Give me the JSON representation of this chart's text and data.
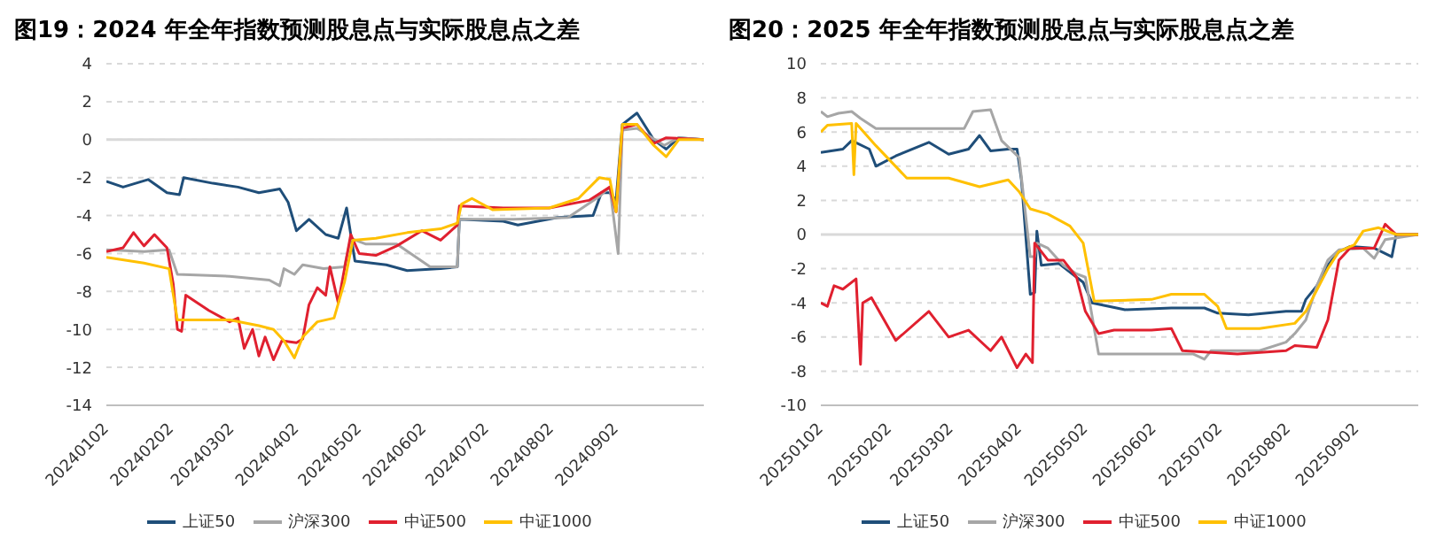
{
  "chart_data": [
    {
      "type": "line",
      "title": "图19：2024 年全年指数预测股息点与实际股息点之差",
      "xlim": [
        "2024-01-02",
        "2024-10-14"
      ],
      "xticks": [
        {
          "value": "2024-01-02",
          "label": "20240102"
        },
        {
          "value": "2024-02-02",
          "label": "20240202"
        },
        {
          "value": "2024-03-02",
          "label": "20240302"
        },
        {
          "value": "2024-04-02",
          "label": "20240402"
        },
        {
          "value": "2024-05-02",
          "label": "20240502"
        },
        {
          "value": "2024-06-02",
          "label": "20240602"
        },
        {
          "value": "2024-07-02",
          "label": "20240702"
        },
        {
          "value": "2024-08-02",
          "label": "20240802"
        },
        {
          "value": "2024-09-02",
          "label": "20240902"
        }
      ],
      "ylim": [
        -14,
        4
      ],
      "yticks": [
        -14,
        -12,
        -10,
        -8,
        -6,
        -4,
        -2,
        0,
        2,
        4
      ],
      "grid": "y",
      "legend": "bottom",
      "marker": "none",
      "line_style": "solid",
      "series": [
        {
          "name": "上证50",
          "color": "#1f4e79",
          "x": [
            "2024-01-02",
            "2024-01-10",
            "2024-01-22",
            "2024-01-31",
            "2024-02-06",
            "2024-02-08",
            "2024-02-22",
            "2024-03-05",
            "2024-03-15",
            "2024-03-25",
            "2024-03-29",
            "2024-04-02",
            "2024-04-08",
            "2024-04-16",
            "2024-04-22",
            "2024-04-26",
            "2024-04-30",
            "2024-05-15",
            "2024-05-25",
            "2024-06-10",
            "2024-06-18",
            "2024-06-19",
            "2024-07-10",
            "2024-07-17",
            "2024-08-05",
            "2024-08-22",
            "2024-08-26",
            "2024-08-30",
            "2024-09-02",
            "2024-09-05",
            "2024-09-12",
            "2024-09-20",
            "2024-09-26",
            "2024-10-02",
            "2024-10-14"
          ],
          "values": [
            -2.2,
            -2.5,
            -2.1,
            -2.8,
            -2.9,
            -2.0,
            -2.3,
            -2.5,
            -2.8,
            -2.6,
            -3.3,
            -4.8,
            -4.2,
            -5.0,
            -5.2,
            -3.6,
            -6.4,
            -6.6,
            -6.9,
            -6.8,
            -6.7,
            -4.2,
            -4.3,
            -4.5,
            -4.1,
            -4.0,
            -2.8,
            -2.8,
            -3.2,
            0.8,
            1.4,
            0.0,
            -0.5,
            0.1,
            0.0
          ]
        },
        {
          "name": "沪深300",
          "color": "#a6a6a6",
          "x": [
            "2024-01-02",
            "2024-01-20",
            "2024-02-01",
            "2024-02-05",
            "2024-03-01",
            "2024-03-20",
            "2024-03-25",
            "2024-03-27",
            "2024-04-01",
            "2024-04-05",
            "2024-04-15",
            "2024-04-25",
            "2024-04-28",
            "2024-05-05",
            "2024-05-20",
            "2024-06-05",
            "2024-06-18",
            "2024-06-19",
            "2024-07-15",
            "2024-08-10",
            "2024-08-25",
            "2024-08-30",
            "2024-09-03",
            "2024-09-05",
            "2024-09-12",
            "2024-09-25",
            "2024-10-02",
            "2024-10-14"
          ],
          "values": [
            -5.8,
            -5.9,
            -5.8,
            -7.1,
            -7.2,
            -7.4,
            -7.7,
            -6.8,
            -7.1,
            -6.6,
            -6.8,
            -6.7,
            -5.2,
            -5.5,
            -5.5,
            -6.7,
            -6.7,
            -4.2,
            -4.2,
            -4.1,
            -3.0,
            -2.5,
            -6.0,
            0.5,
            0.6,
            -0.3,
            0.1,
            0.0
          ]
        },
        {
          "name": "中证500",
          "color": "#e0202f",
          "x": [
            "2024-01-02",
            "2024-01-10",
            "2024-01-15",
            "2024-01-20",
            "2024-01-25",
            "2024-01-31",
            "2024-02-03",
            "2024-02-05",
            "2024-02-07",
            "2024-02-09",
            "2024-02-20",
            "2024-03-01",
            "2024-03-05",
            "2024-03-08",
            "2024-03-12",
            "2024-03-15",
            "2024-03-18",
            "2024-03-22",
            "2024-03-26",
            "2024-04-02",
            "2024-04-05",
            "2024-04-08",
            "2024-04-12",
            "2024-04-16",
            "2024-04-18",
            "2024-04-22",
            "2024-04-25",
            "2024-04-28",
            "2024-05-02",
            "2024-05-10",
            "2024-05-20",
            "2024-06-01",
            "2024-06-10",
            "2024-06-18",
            "2024-06-19",
            "2024-07-10",
            "2024-08-01",
            "2024-08-20",
            "2024-08-30",
            "2024-09-02",
            "2024-09-05",
            "2024-09-12",
            "2024-09-20",
            "2024-09-26",
            "2024-10-14"
          ],
          "values": [
            -5.9,
            -5.7,
            -4.9,
            -5.6,
            -5.0,
            -5.7,
            -7.6,
            -10.0,
            -10.1,
            -8.2,
            -9.0,
            -9.6,
            -9.4,
            -11.0,
            -10.0,
            -11.4,
            -10.4,
            -11.6,
            -10.6,
            -10.7,
            -10.5,
            -8.7,
            -7.8,
            -8.2,
            -6.7,
            -8.6,
            -6.8,
            -5.0,
            -6.0,
            -6.1,
            -5.6,
            -4.8,
            -5.3,
            -4.5,
            -3.5,
            -3.6,
            -3.6,
            -3.2,
            -2.5,
            -3.8,
            0.6,
            0.8,
            -0.2,
            0.1,
            0.0
          ]
        },
        {
          "name": "中证1000",
          "color": "#ffc000",
          "x": [
            "2024-01-02",
            "2024-01-20",
            "2024-02-01",
            "2024-02-05",
            "2024-02-20",
            "2024-03-01",
            "2024-03-15",
            "2024-03-22",
            "2024-03-27",
            "2024-04-01",
            "2024-04-05",
            "2024-04-12",
            "2024-04-20",
            "2024-04-25",
            "2024-04-29",
            "2024-05-10",
            "2024-05-25",
            "2024-06-10",
            "2024-06-18",
            "2024-06-20",
            "2024-06-25",
            "2024-07-05",
            "2024-08-01",
            "2024-08-15",
            "2024-08-25",
            "2024-08-30",
            "2024-09-02",
            "2024-09-05",
            "2024-09-12",
            "2024-09-20",
            "2024-09-26",
            "2024-10-02",
            "2024-10-14"
          ],
          "values": [
            -6.2,
            -6.5,
            -6.8,
            -9.5,
            -9.5,
            -9.5,
            -9.8,
            -10.0,
            -10.6,
            -11.5,
            -10.4,
            -9.6,
            -9.4,
            -7.5,
            -5.3,
            -5.2,
            -4.9,
            -4.7,
            -4.4,
            -3.4,
            -3.1,
            -3.7,
            -3.6,
            -3.1,
            -2.0,
            -2.1,
            -3.8,
            0.8,
            0.8,
            -0.3,
            -0.9,
            0.0,
            0.0
          ]
        }
      ]
    },
    {
      "type": "line",
      "title": "图20：2025 年全年指数预测股息点与实际股息点之差",
      "xlim": [
        "2025-01-02",
        "2025-09-30"
      ],
      "xticks": [
        {
          "value": "2025-01-02",
          "label": "20250102"
        },
        {
          "value": "2025-02-02",
          "label": "20250202"
        },
        {
          "value": "2025-03-02",
          "label": "20250302"
        },
        {
          "value": "2025-04-02",
          "label": "20250402"
        },
        {
          "value": "2025-05-02",
          "label": "20250502"
        },
        {
          "value": "2025-06-02",
          "label": "20250602"
        },
        {
          "value": "2025-07-02",
          "label": "20250702"
        },
        {
          "value": "2025-08-02",
          "label": "20250802"
        },
        {
          "value": "2025-09-02",
          "label": "20250902"
        }
      ],
      "ylim": [
        -10,
        10
      ],
      "yticks": [
        -10,
        -8,
        -6,
        -4,
        -2,
        0,
        2,
        4,
        6,
        8,
        10
      ],
      "grid": "y",
      "legend": "bottom",
      "marker": "none",
      "line_style": "solid",
      "series": [
        {
          "name": "上证50",
          "color": "#1f4e79",
          "x": [
            "2025-01-02",
            "2025-01-12",
            "2025-01-16",
            "2025-01-24",
            "2025-01-27",
            "2025-02-05",
            "2025-02-20",
            "2025-03-01",
            "2025-03-10",
            "2025-03-15",
            "2025-03-20",
            "2025-03-28",
            "2025-04-01",
            "2025-04-03",
            "2025-04-07",
            "2025-04-09",
            "2025-04-10",
            "2025-04-12",
            "2025-04-20",
            "2025-04-28",
            "2025-05-01",
            "2025-05-05",
            "2025-05-20",
            "2025-06-10",
            "2025-06-25",
            "2025-07-01",
            "2025-07-15",
            "2025-08-01",
            "2025-08-08",
            "2025-08-10",
            "2025-08-15",
            "2025-08-20",
            "2025-08-25",
            "2025-08-30",
            "2025-09-10",
            "2025-09-18",
            "2025-09-20",
            "2025-09-30"
          ],
          "values": [
            4.8,
            5.0,
            5.5,
            5.0,
            4.0,
            4.6,
            5.4,
            4.7,
            5.0,
            5.8,
            4.9,
            5.0,
            5.0,
            3.2,
            -3.5,
            -3.4,
            0.2,
            -1.8,
            -1.7,
            -2.5,
            -2.8,
            -4.0,
            -4.4,
            -4.3,
            -4.3,
            -4.6,
            -4.7,
            -4.5,
            -4.5,
            -3.8,
            -3.0,
            -1.8,
            -1.0,
            -0.7,
            -0.8,
            -1.3,
            0.0,
            0.0
          ]
        },
        {
          "name": "沪深300",
          "color": "#a6a6a6",
          "x": [
            "2025-01-02",
            "2025-01-05",
            "2025-01-10",
            "2025-01-16",
            "2025-01-20",
            "2025-01-27",
            "2025-02-20",
            "2025-03-08",
            "2025-03-12",
            "2025-03-20",
            "2025-03-25",
            "2025-04-02",
            "2025-04-07",
            "2025-04-09",
            "2025-04-10",
            "2025-04-15",
            "2025-04-22",
            "2025-04-28",
            "2025-05-02",
            "2025-05-08",
            "2025-06-10",
            "2025-06-20",
            "2025-06-25",
            "2025-06-28",
            "2025-07-20",
            "2025-08-01",
            "2025-08-05",
            "2025-08-10",
            "2025-08-15",
            "2025-08-20",
            "2025-08-25",
            "2025-09-05",
            "2025-09-10",
            "2025-09-15",
            "2025-09-30"
          ],
          "values": [
            7.2,
            6.9,
            7.1,
            7.2,
            6.8,
            6.2,
            6.2,
            6.2,
            7.2,
            7.3,
            5.5,
            4.5,
            -1.3,
            -1.3,
            -0.5,
            -0.8,
            -1.8,
            -2.3,
            -2.5,
            -7.0,
            -7.0,
            -7.0,
            -7.3,
            -6.8,
            -6.8,
            -6.3,
            -5.8,
            -5.0,
            -3.0,
            -1.5,
            -0.9,
            -0.8,
            -1.4,
            -0.3,
            0.0
          ]
        },
        {
          "name": "中证500",
          "color": "#e0202f",
          "x": [
            "2025-01-02",
            "2025-01-05",
            "2025-01-08",
            "2025-01-12",
            "2025-01-18",
            "2025-01-20",
            "2025-01-21",
            "2025-01-25",
            "2025-02-05",
            "2025-02-20",
            "2025-03-01",
            "2025-03-10",
            "2025-03-20",
            "2025-03-25",
            "2025-04-01",
            "2025-04-05",
            "2025-04-08",
            "2025-04-09",
            "2025-04-15",
            "2025-04-22",
            "2025-04-28",
            "2025-05-02",
            "2025-05-08",
            "2025-05-15",
            "2025-06-01",
            "2025-06-10",
            "2025-06-15",
            "2025-07-10",
            "2025-08-01",
            "2025-08-05",
            "2025-08-15",
            "2025-08-20",
            "2025-08-25",
            "2025-08-30",
            "2025-09-10",
            "2025-09-15",
            "2025-09-20",
            "2025-09-30"
          ],
          "values": [
            -4.0,
            -4.2,
            -3.0,
            -3.2,
            -2.6,
            -7.6,
            -4.0,
            -3.7,
            -6.2,
            -4.5,
            -6.0,
            -5.6,
            -6.8,
            -6.0,
            -7.8,
            -7.0,
            -7.5,
            -0.5,
            -1.5,
            -1.5,
            -2.5,
            -4.5,
            -5.8,
            -5.6,
            -5.6,
            -5.5,
            -6.8,
            -7.0,
            -6.8,
            -6.5,
            -6.6,
            -5.0,
            -1.5,
            -0.8,
            -0.8,
            0.6,
            0.0,
            0.0
          ]
        },
        {
          "name": "中证1000",
          "color": "#ffc000",
          "x": [
            "2025-01-02",
            "2025-01-05",
            "2025-01-16",
            "2025-01-17",
            "2025-01-18",
            "2025-01-27",
            "2025-02-10",
            "2025-03-01",
            "2025-03-15",
            "2025-03-28",
            "2025-04-02",
            "2025-04-07",
            "2025-04-15",
            "2025-04-25",
            "2025-05-01",
            "2025-05-06",
            "2025-06-01",
            "2025-06-10",
            "2025-06-25",
            "2025-07-01",
            "2025-07-05",
            "2025-07-20",
            "2025-08-05",
            "2025-08-10",
            "2025-08-20",
            "2025-08-25",
            "2025-09-01",
            "2025-09-05",
            "2025-09-12",
            "2025-09-20",
            "2025-09-30"
          ],
          "values": [
            6.0,
            6.4,
            6.5,
            3.5,
            6.5,
            5.2,
            3.3,
            3.3,
            2.8,
            3.2,
            2.5,
            1.5,
            1.2,
            0.5,
            -0.5,
            -3.9,
            -3.8,
            -3.5,
            -3.5,
            -4.2,
            -5.5,
            -5.5,
            -5.2,
            -4.5,
            -2.0,
            -1.0,
            -0.6,
            0.2,
            0.4,
            0.0,
            0.0
          ]
        }
      ]
    }
  ]
}
